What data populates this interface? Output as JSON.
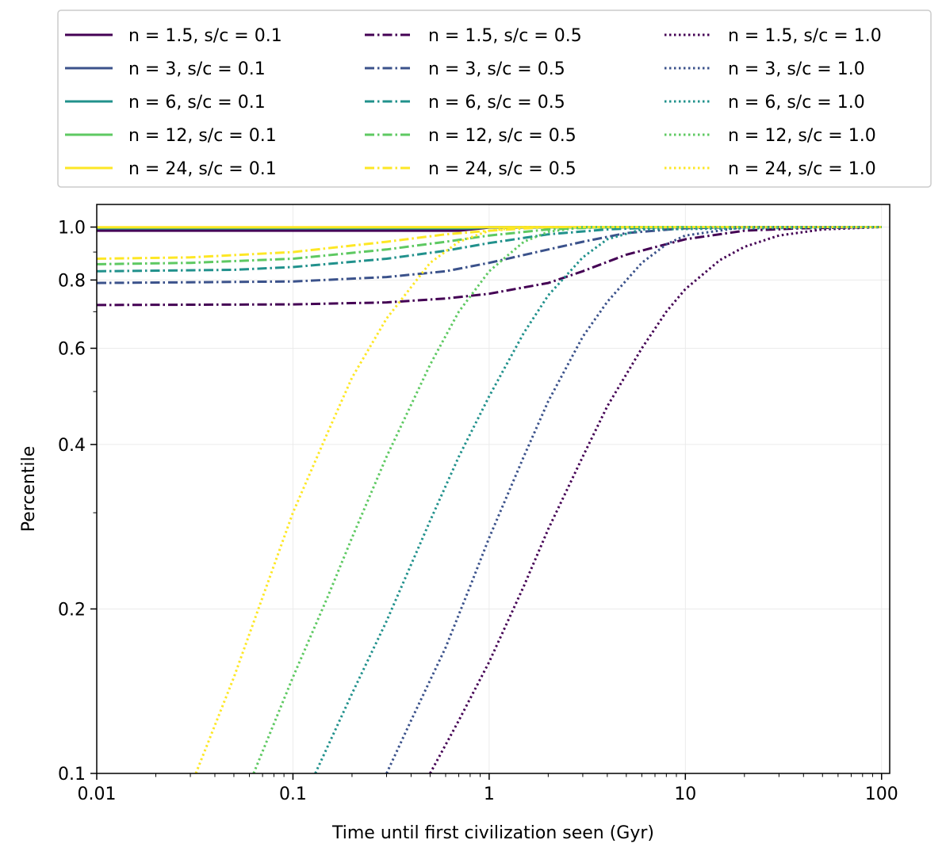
{
  "chart_data": {
    "type": "line",
    "xlabel": "Time until first civilization seen (Gyr)",
    "ylabel": "Percentile",
    "xscale": "log",
    "yscale": "log",
    "xlim": [
      0.01,
      110
    ],
    "ylim": [
      0.1,
      1.1
    ],
    "xticks": [
      0.01,
      0.1,
      1,
      10,
      100
    ],
    "xtick_labels": [
      "0.01",
      "0.1",
      "1",
      "10",
      "100"
    ],
    "yticks": [
      0.1,
      0.2,
      0.4,
      0.6,
      0.8,
      1.0
    ],
    "ytick_labels": [
      "0.1",
      "0.2",
      "0.4",
      "0.6",
      "0.8",
      "1.0"
    ],
    "grid": true,
    "legend_position": "top, above plot, 3 columns",
    "series": [
      {
        "name": "n = 1.5, s/c = 0.1",
        "color": "#440154",
        "style": "solid",
        "x": [
          0.01,
          0.7,
          1.0,
          100
        ],
        "y": [
          0.985,
          0.985,
          0.998,
          1.0
        ]
      },
      {
        "name": "n = 3, s/c = 0.1",
        "color": "#3b528b",
        "style": "solid",
        "x": [
          0.01,
          0.8,
          1.0,
          100
        ],
        "y": [
          0.993,
          0.993,
          0.999,
          1.0
        ]
      },
      {
        "name": "n = 6, s/c = 0.1",
        "color": "#21918c",
        "style": "solid",
        "x": [
          0.01,
          0.8,
          1.0,
          100
        ],
        "y": [
          0.996,
          0.996,
          0.999,
          1.0
        ]
      },
      {
        "name": "n = 12, s/c = 0.1",
        "color": "#5ec962",
        "style": "solid",
        "x": [
          0.01,
          0.8,
          1.0,
          100
        ],
        "y": [
          0.998,
          0.998,
          0.999,
          1.0
        ]
      },
      {
        "name": "n = 24, s/c = 0.1",
        "color": "#fde725",
        "style": "solid",
        "x": [
          0.01,
          100
        ],
        "y": [
          0.999,
          1.0
        ]
      },
      {
        "name": "n = 1.5, s/c = 0.5",
        "color": "#440154",
        "style": "dashdot",
        "x": [
          0.01,
          0.1,
          0.3,
          0.6,
          1.0,
          2.0,
          3.0,
          5.0,
          10,
          20,
          40,
          100
        ],
        "y": [
          0.72,
          0.722,
          0.728,
          0.74,
          0.755,
          0.79,
          0.83,
          0.89,
          0.95,
          0.985,
          0.995,
          1.0
        ]
      },
      {
        "name": "n = 3, s/c = 0.5",
        "color": "#3b528b",
        "style": "dashdot",
        "x": [
          0.01,
          0.1,
          0.3,
          0.6,
          1.0,
          2.0,
          3.0,
          5.0,
          10,
          20,
          100
        ],
        "y": [
          0.79,
          0.795,
          0.81,
          0.83,
          0.86,
          0.91,
          0.94,
          0.975,
          0.995,
          1.0,
          1.0
        ]
      },
      {
        "name": "n = 6, s/c = 0.5",
        "color": "#21918c",
        "style": "dashdot",
        "x": [
          0.01,
          0.05,
          0.1,
          0.3,
          0.6,
          1.0,
          2.0,
          4.0,
          8.0,
          100
        ],
        "y": [
          0.83,
          0.835,
          0.845,
          0.875,
          0.905,
          0.935,
          0.97,
          0.99,
          1.0,
          1.0
        ]
      },
      {
        "name": "n = 12, s/c = 0.5",
        "color": "#5ec962",
        "style": "dashdot",
        "x": [
          0.01,
          0.03,
          0.1,
          0.3,
          0.6,
          1.0,
          2.0,
          4.0,
          100
        ],
        "y": [
          0.855,
          0.86,
          0.875,
          0.91,
          0.94,
          0.965,
          0.99,
          1.0,
          1.0
        ]
      },
      {
        "name": "n = 24, s/c = 0.5",
        "color": "#fde725",
        "style": "dashdot",
        "x": [
          0.01,
          0.03,
          0.1,
          0.3,
          0.6,
          1.0,
          2.0,
          100
        ],
        "y": [
          0.875,
          0.88,
          0.9,
          0.94,
          0.97,
          0.985,
          1.0,
          1.0
        ]
      },
      {
        "name": "n = 1.5, s/c = 1.0",
        "color": "#440154",
        "style": "dotted",
        "x": [
          0.5,
          0.7,
          1.0,
          1.5,
          2.0,
          3.0,
          4.0,
          6.0,
          8.0,
          10,
          15,
          20,
          30,
          50,
          100
        ],
        "y": [
          0.1,
          0.125,
          0.16,
          0.22,
          0.28,
          0.38,
          0.47,
          0.6,
          0.7,
          0.77,
          0.87,
          0.92,
          0.965,
          0.99,
          1.0
        ]
      },
      {
        "name": "n = 3, s/c = 1.0",
        "color": "#3b528b",
        "style": "dotted",
        "x": [
          0.3,
          0.4,
          0.6,
          0.8,
          1.0,
          1.5,
          2.0,
          3.0,
          4.0,
          6.0,
          8.0,
          10,
          20,
          100
        ],
        "y": [
          0.1,
          0.125,
          0.17,
          0.22,
          0.27,
          0.38,
          0.48,
          0.63,
          0.73,
          0.86,
          0.93,
          0.965,
          1.0,
          1.0
        ]
      },
      {
        "name": "n = 6, s/c = 1.0",
        "color": "#21918c",
        "style": "dotted",
        "x": [
          0.13,
          0.2,
          0.3,
          0.5,
          0.7,
          1.0,
          1.5,
          2.0,
          3.0,
          4.0,
          6.0,
          100
        ],
        "y": [
          0.1,
          0.14,
          0.19,
          0.29,
          0.38,
          0.49,
          0.64,
          0.75,
          0.88,
          0.95,
          0.99,
          1.0
        ]
      },
      {
        "name": "n = 12, s/c = 1.0",
        "color": "#5ec962",
        "style": "dotted",
        "x": [
          0.063,
          0.1,
          0.15,
          0.2,
          0.3,
          0.5,
          0.7,
          1.0,
          1.5,
          2.0,
          3.0,
          100
        ],
        "y": [
          0.1,
          0.15,
          0.21,
          0.27,
          0.38,
          0.56,
          0.7,
          0.83,
          0.94,
          0.98,
          1.0,
          1.0
        ]
      },
      {
        "name": "n = 24, s/c = 1.0",
        "color": "#fde725",
        "style": "dotted",
        "x": [
          0.032,
          0.05,
          0.07,
          0.1,
          0.15,
          0.2,
          0.3,
          0.5,
          0.7,
          1.0,
          1.5,
          100
        ],
        "y": [
          0.1,
          0.15,
          0.21,
          0.3,
          0.42,
          0.53,
          0.68,
          0.86,
          0.94,
          0.985,
          1.0,
          1.0
        ]
      }
    ]
  }
}
